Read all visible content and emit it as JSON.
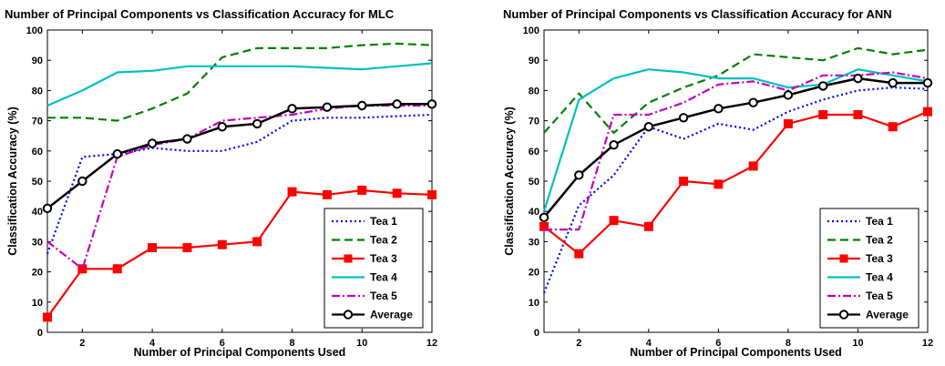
{
  "chart_data": [
    {
      "type": "line",
      "title": "Number of Principal Components vs Classification Accuracy for MLC",
      "xlabel": "Number of Principal Components Used",
      "ylabel": "Classification Accuracy (%)",
      "xlim": [
        1,
        12
      ],
      "ylim": [
        0,
        100
      ],
      "xticks": [
        2,
        4,
        6,
        8,
        10,
        12
      ],
      "yticks": [
        0,
        10,
        20,
        30,
        40,
        50,
        60,
        70,
        80,
        90,
        100
      ],
      "grid": false,
      "legend_position": "bottom-right",
      "x": [
        1,
        2,
        3,
        4,
        5,
        6,
        7,
        8,
        9,
        10,
        11,
        12
      ],
      "series": [
        {
          "name": "Tea 1",
          "color": "#0000ff",
          "style": "dotted",
          "marker": "none",
          "values": [
            26,
            58,
            59,
            61,
            60,
            60,
            63,
            70,
            71,
            71,
            71.5,
            72
          ]
        },
        {
          "name": "Tea 2",
          "color": "#008000",
          "style": "dashed",
          "marker": "none",
          "values": [
            71,
            71,
            70,
            74,
            79,
            91,
            94,
            94,
            94,
            95,
            95.5,
            95
          ]
        },
        {
          "name": "Tea 3",
          "color": "#ff0000",
          "style": "solid",
          "marker": "square",
          "values": [
            5,
            21,
            21,
            28,
            28,
            29,
            30,
            46.5,
            45.5,
            47,
            46,
            45.5
          ]
        },
        {
          "name": "Tea 4",
          "color": "#00c0c0",
          "style": "solid",
          "marker": "none",
          "values": [
            75,
            80,
            86,
            86.5,
            88,
            88,
            88,
            88,
            87.5,
            87,
            88,
            89
          ]
        },
        {
          "name": "Tea 5",
          "color": "#c000c0",
          "style": "dashdot",
          "marker": "none",
          "values": [
            30,
            21,
            58,
            62,
            64,
            70,
            71,
            72,
            74,
            75,
            75,
            75
          ]
        },
        {
          "name": "Average",
          "color": "#000000",
          "style": "solid",
          "marker": "circle",
          "values": [
            41,
            50,
            59,
            62.5,
            64,
            68,
            69,
            74,
            74.5,
            75,
            75.5,
            75.5
          ]
        }
      ]
    },
    {
      "type": "line",
      "title": "Number of Principal Components vs Classification Accuracy for ANN",
      "xlabel": "Number of Principal Components Used",
      "ylabel": "Classification Accuracy (%)",
      "xlim": [
        1,
        12
      ],
      "ylim": [
        0,
        100
      ],
      "xticks": [
        2,
        4,
        6,
        8,
        10,
        12
      ],
      "yticks": [
        0,
        10,
        20,
        30,
        40,
        50,
        60,
        70,
        80,
        90,
        100
      ],
      "grid": false,
      "legend_position": "bottom-right",
      "x": [
        1,
        2,
        3,
        4,
        5,
        6,
        7,
        8,
        9,
        10,
        11,
        12
      ],
      "series": [
        {
          "name": "Tea 1",
          "color": "#0000ff",
          "style": "dotted",
          "marker": "none",
          "values": [
            13,
            42,
            52,
            68,
            64,
            69,
            67,
            73,
            77,
            80,
            81,
            80.5
          ]
        },
        {
          "name": "Tea 2",
          "color": "#008000",
          "style": "dashed",
          "marker": "none",
          "values": [
            66,
            79,
            66,
            76,
            81,
            85,
            92,
            91,
            90,
            94,
            92,
            93.5
          ]
        },
        {
          "name": "Tea 3",
          "color": "#ff0000",
          "style": "solid",
          "marker": "square",
          "values": [
            35,
            26,
            37,
            35,
            50,
            49,
            55,
            69,
            72,
            72,
            68,
            73
          ]
        },
        {
          "name": "Tea 4",
          "color": "#00c0c0",
          "style": "solid",
          "marker": "none",
          "values": [
            40,
            77,
            84,
            87,
            86,
            84,
            84,
            81,
            82,
            87,
            85,
            83
          ]
        },
        {
          "name": "Tea 5",
          "color": "#c000c0",
          "style": "dashdot",
          "marker": "none",
          "values": [
            34,
            34,
            72,
            72,
            76,
            82,
            83,
            80,
            85,
            85,
            86,
            84
          ]
        },
        {
          "name": "Average",
          "color": "#000000",
          "style": "solid",
          "marker": "circle",
          "values": [
            38,
            52,
            62,
            68,
            71,
            74,
            76,
            78.5,
            81.5,
            84,
            82.5,
            82.5
          ]
        }
      ]
    }
  ]
}
